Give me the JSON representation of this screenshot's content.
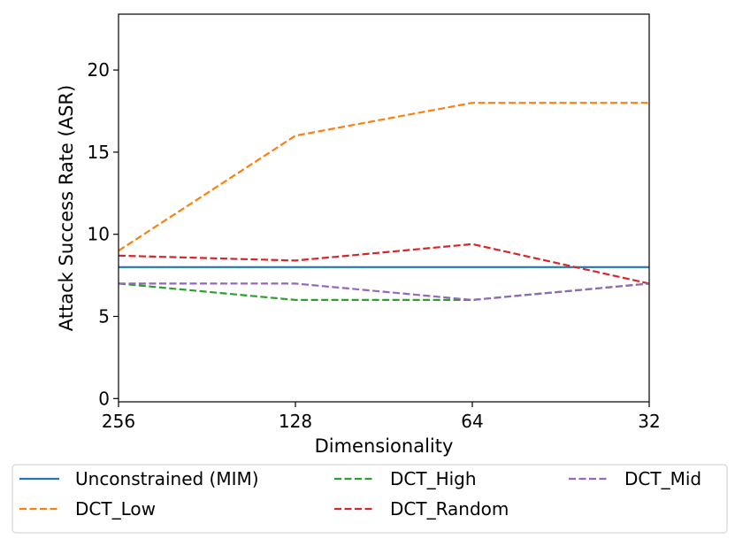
{
  "chart_data": {
    "type": "line",
    "title": "",
    "xlabel": "Dimensionality",
    "ylabel": "Attack Success Rate (ASR)",
    "categories": [
      "256",
      "128",
      "64",
      "32"
    ],
    "ylim": [
      -0.2,
      23.4
    ],
    "yticks": [
      0,
      5,
      10,
      15,
      20
    ],
    "grid": false,
    "legend_position": "bottom",
    "series": [
      {
        "name": "Unconstrained (MIM)",
        "values": [
          8,
          8,
          8,
          8
        ],
        "color": "#1f77b4",
        "style": "solid"
      },
      {
        "name": "DCT_Low",
        "values": [
          9,
          16,
          18,
          18
        ],
        "color": "#ff7f0e",
        "style": "dashed"
      },
      {
        "name": "DCT_High",
        "values": [
          7,
          6,
          6,
          7
        ],
        "color": "#2ca02c",
        "style": "dashed"
      },
      {
        "name": "DCT_Random",
        "values": [
          8.7,
          8.4,
          9.4,
          7
        ],
        "color": "#d62728",
        "style": "dashed"
      },
      {
        "name": "DCT_Mid",
        "values": [
          7,
          7,
          6,
          7
        ],
        "color": "#9467bd",
        "style": "dashed"
      }
    ]
  }
}
